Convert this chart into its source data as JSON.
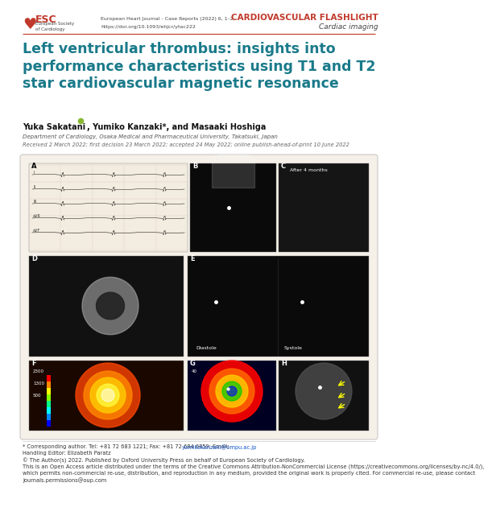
{
  "bg_color": "#ffffff",
  "header": {
    "flashlight_text": "CARDIOVASCULAR FLASHLIGHT",
    "flashlight_color": "#c0392b",
    "journal_line1": "European Heart Journal - Case Reports (2022) 6, 1–2",
    "journal_line2": "https://doi.org/10.1093/ehjcr/ytac222",
    "subheader_text": "Cardiac imaging"
  },
  "title": "Left ventricular thrombus: insights into\nperformance characteristics using T1 and T2\nstar cardiovascular magnetic resonance",
  "title_color": "#1a7a8a",
  "authors": "Yuka Sakatani    , Yumiko Kanzaki*, and Masaaki Hoshiga",
  "affiliation": "Department of Cardiology, Osaka Medical and Pharmaceutical University, Takatsuki, Japan",
  "received": "Received 2 March 2022; first decision 23 March 2022; accepted 24 May 2022; online publish-ahead-of-print 10 June 2022",
  "footer_lines": [
    "* Corresponding author. Tel: +81 72 683 1221; Fax: +81 72 684 6859; Email: yumikokanzaki@ompu.ac.jp",
    "Handling Editor: Elizabeth Paratz",
    "© The Author(s) 2022. Published by Oxford University Press on behalf of European Society of Cardiology.",
    "This is an Open Access article distributed under the terms of the Creative Commons Attribution-NonCommercial License (https://creativecommons.org/licenses/by-nc/4.0/),",
    "which permits non-commercial re-use, distribution, and reproduction in any medium, provided the original work is properly cited. For commercial re-use, please contact",
    "journals.permissions@oup.com"
  ],
  "footer_fontsize": 4.8,
  "separator_color": "#c0392b",
  "panel_bg": "#f5f0e8",
  "panel_border": "#cccccc",
  "ecg_bg": "#f0ece0",
  "us_bg": "#0a0a0a",
  "mri_bg": "#0a0a0a",
  "mri_gray": "#505050",
  "colormap_bg": "#1a0a00",
  "thermal_bg": "#000033"
}
